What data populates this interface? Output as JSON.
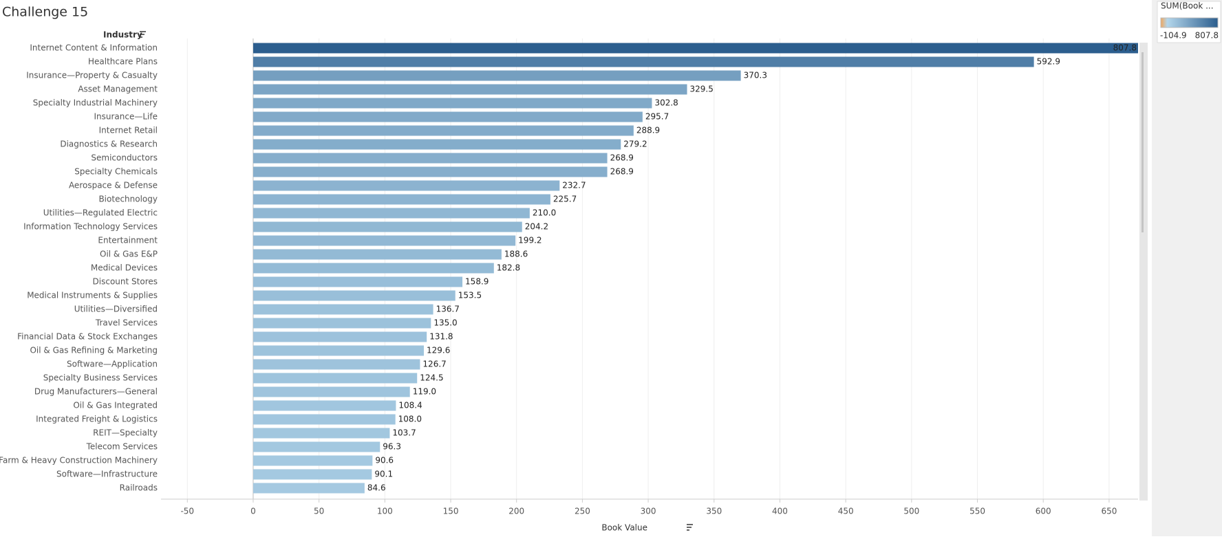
{
  "chart_data": {
    "type": "bar",
    "orientation": "horizontal",
    "title": "Challenge 15",
    "y_header": "Industry",
    "x_label": "Book Value",
    "categories": [
      "Internet Content & Information",
      "Healthcare Plans",
      "Insurance—Property & Casualty",
      "Asset Management",
      "Specialty Industrial Machinery",
      "Insurance—Life",
      "Internet Retail",
      "Diagnostics & Research",
      "Semiconductors",
      "Specialty Chemicals",
      "Aerospace & Defense",
      "Biotechnology",
      "Utilities—Regulated Electric",
      "Information Technology Services",
      "Entertainment",
      "Oil & Gas E&P",
      "Medical Devices",
      "Discount Stores",
      "Medical Instruments & Supplies",
      "Utilities—Diversified",
      "Travel Services",
      "Financial Data & Stock Exchanges",
      "Oil & Gas Refining & Marketing",
      "Software—Application",
      "Specialty Business Services",
      "Drug Manufacturers—General",
      "Oil & Gas Integrated",
      "Integrated Freight & Logistics",
      "REIT—Specialty",
      "Telecom Services",
      "Farm & Heavy Construction Machinery",
      "Software—Infrastructure",
      "Railroads"
    ],
    "values": [
      807.8,
      592.9,
      370.3,
      329.5,
      302.8,
      295.7,
      288.9,
      279.2,
      268.9,
      268.9,
      232.7,
      225.7,
      210.0,
      204.2,
      199.2,
      188.6,
      182.8,
      158.9,
      153.5,
      136.7,
      135.0,
      131.8,
      129.6,
      126.7,
      124.5,
      119.0,
      108.4,
      108.0,
      103.7,
      96.3,
      90.6,
      90.1,
      84.6
    ],
    "value_labels": [
      "807.8",
      "592.9",
      "370.3",
      "329.5",
      "302.8",
      "295.7",
      "288.9",
      "279.2",
      "268.9",
      "268.9",
      "232.7",
      "225.7",
      "210.0",
      "204.2",
      "199.2",
      "188.6",
      "182.8",
      "158.9",
      "153.5",
      "136.7",
      "135.0",
      "131.8",
      "129.6",
      "126.7",
      "124.5",
      "119.0",
      "108.4",
      "108.0",
      "103.7",
      "96.3",
      "90.6",
      "90.1",
      "84.6"
    ],
    "xlim": [
      -70,
      672
    ],
    "xticks": [
      -50,
      0,
      50,
      100,
      150,
      200,
      250,
      300,
      350,
      400,
      450,
      500,
      550,
      600,
      650
    ],
    "grid": true,
    "color_legend": {
      "title": "SUM(Book ...",
      "min": -104.9,
      "max": 807.8,
      "min_label": "-104.9",
      "max_label": "807.8"
    },
    "palette": {
      "low": "#f2a65a",
      "zero": "#b3d6eb",
      "high": "#2c5e8e"
    }
  }
}
